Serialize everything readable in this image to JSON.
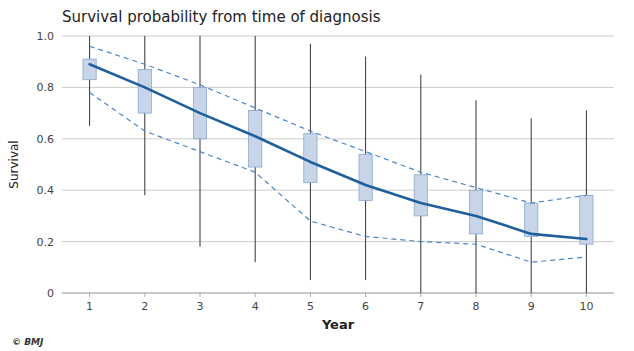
{
  "chart_data": {
    "type": "line",
    "title": "Survival probability from time of diagnosis",
    "x_label": "Year",
    "y_label": "Survival",
    "x": [
      1,
      2,
      3,
      4,
      5,
      6,
      7,
      8,
      9,
      10
    ],
    "xlim": [
      0.5,
      10.5
    ],
    "xticks": [
      1,
      2,
      3,
      4,
      5,
      6,
      7,
      8,
      9,
      10
    ],
    "ylim": [
      0,
      1.0
    ],
    "yticks": [
      0,
      0.2,
      0.4,
      0.6,
      0.8,
      {
        "value": 1.0,
        "label": "1.0"
      }
    ],
    "grid": true,
    "annotations": [
      "© BMJ"
    ],
    "series": [
      {
        "type": "whisker",
        "color": "#333333",
        "upper": [
          1.0,
          1.0,
          1.0,
          1.0,
          0.97,
          0.92,
          0.85,
          0.75,
          0.68,
          0.71
        ],
        "lower": [
          0.65,
          0.38,
          0.18,
          0.12,
          0.05,
          0.05,
          0.0,
          0.0,
          0.0,
          0.0
        ]
      },
      {
        "type": "box",
        "color": "#c8d5e8",
        "upper": [
          0.91,
          0.87,
          0.8,
          0.71,
          0.62,
          0.54,
          0.46,
          0.4,
          0.35,
          0.38
        ],
        "lower": [
          0.83,
          0.7,
          0.6,
          0.49,
          0.43,
          0.36,
          0.3,
          0.23,
          0.22,
          0.19
        ]
      },
      {
        "type": "line",
        "line_style": "dashed",
        "color": "#4a86c8",
        "values": [
          0.96,
          0.89,
          0.81,
          0.72,
          0.63,
          0.55,
          0.47,
          0.41,
          0.35,
          0.38
        ]
      },
      {
        "type": "line",
        "line_style": "dashed",
        "color": "#4a86c8",
        "values": [
          0.78,
          0.63,
          0.55,
          0.47,
          0.28,
          0.22,
          0.2,
          0.19,
          0.12,
          0.14
        ]
      },
      {
        "type": "line",
        "line_style": "solid",
        "color": "#1f5f9e",
        "values": [
          0.89,
          0.8,
          0.7,
          0.61,
          0.51,
          0.42,
          0.35,
          0.3,
          0.23,
          0.21
        ]
      }
    ]
  }
}
